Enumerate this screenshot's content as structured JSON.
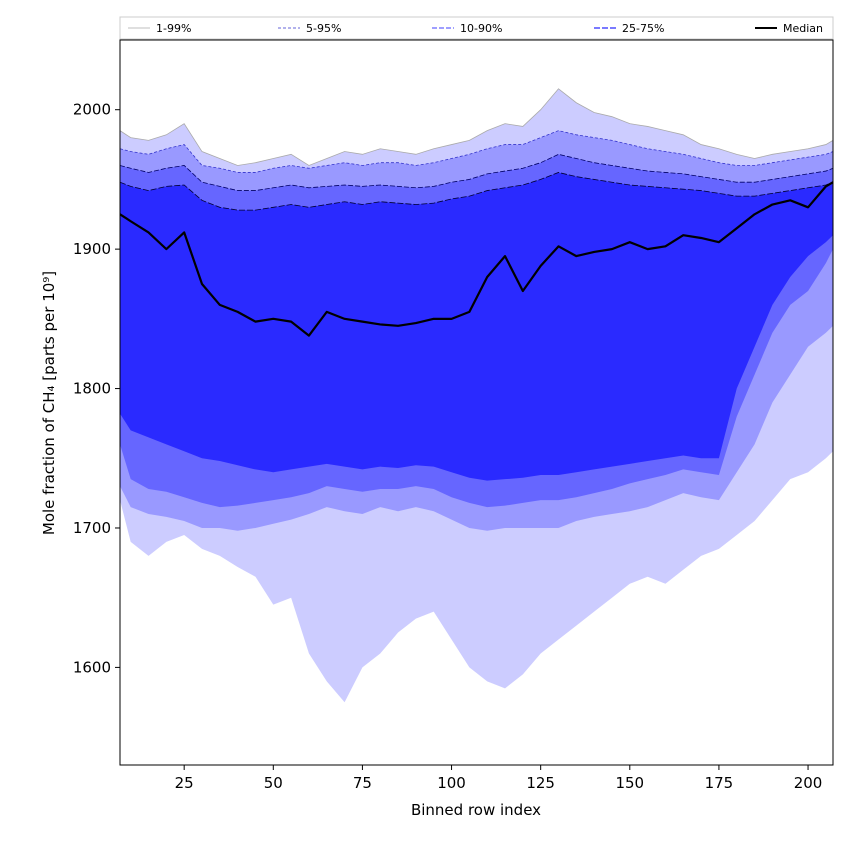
{
  "chart_data": {
    "type": "area",
    "title": "",
    "xlabel": "Binned row index",
    "ylabel": "Mole fraction of CH₄ [parts per 10⁹]",
    "xlim": [
      7,
      207
    ],
    "ylim": [
      1530,
      2050
    ],
    "xticks": [
      25,
      50,
      75,
      100,
      125,
      150,
      175,
      200
    ],
    "yticks": [
      1600,
      1700,
      1800,
      1900,
      2000
    ],
    "grid": false,
    "legend": {
      "placement": "top",
      "entries": [
        "1-99%",
        "5-95%",
        "10-90%",
        "25-75%",
        "Median"
      ]
    },
    "colors": {
      "band_1_99": "#ccccff",
      "band_5_95": "#9999ff",
      "band_10_90": "#6666ff",
      "band_25_75": "#2a2aff",
      "median": "#000000",
      "edge_1_99": "#aaaaaa",
      "edge_5_95": "#3333cc",
      "edge_10_90": "#000066",
      "edge_25_75": "#000033"
    },
    "x": [
      7,
      10,
      15,
      20,
      25,
      30,
      35,
      40,
      45,
      50,
      55,
      60,
      65,
      70,
      75,
      80,
      85,
      90,
      95,
      100,
      105,
      110,
      115,
      120,
      125,
      130,
      135,
      140,
      145,
      150,
      155,
      160,
      165,
      170,
      175,
      180,
      185,
      190,
      195,
      200,
      205,
      207
    ],
    "series": [
      {
        "name": "1-99%",
        "lower": [
          1720,
          1690,
          1680,
          1690,
          1695,
          1685,
          1680,
          1672,
          1665,
          1645,
          1650,
          1610,
          1590,
          1575,
          1600,
          1610,
          1625,
          1635,
          1640,
          1620,
          1600,
          1590,
          1585,
          1595,
          1610,
          1620,
          1630,
          1640,
          1650,
          1660,
          1665,
          1660,
          1670,
          1680,
          1685,
          1695,
          1705,
          1720,
          1735,
          1740,
          1750,
          1755
        ],
        "upper": [
          1985,
          1980,
          1978,
          1982,
          1990,
          1970,
          1965,
          1960,
          1962,
          1965,
          1968,
          1960,
          1965,
          1970,
          1968,
          1972,
          1970,
          1968,
          1972,
          1975,
          1978,
          1985,
          1990,
          1988,
          2000,
          2015,
          2005,
          1998,
          1995,
          1990,
          1988,
          1985,
          1982,
          1975,
          1972,
          1968,
          1965,
          1968,
          1970,
          1972,
          1975,
          1978
        ]
      },
      {
        "name": "5-95%",
        "lower": [
          1730,
          1715,
          1710,
          1708,
          1705,
          1700,
          1700,
          1698,
          1700,
          1703,
          1706,
          1710,
          1715,
          1712,
          1710,
          1715,
          1712,
          1715,
          1712,
          1706,
          1700,
          1698,
          1700,
          1700,
          1700,
          1700,
          1705,
          1708,
          1710,
          1712,
          1715,
          1720,
          1725,
          1722,
          1720,
          1740,
          1760,
          1790,
          1810,
          1830,
          1840,
          1845
        ],
        "upper": [
          1972,
          1970,
          1968,
          1972,
          1975,
          1960,
          1958,
          1955,
          1955,
          1958,
          1960,
          1958,
          1960,
          1962,
          1960,
          1962,
          1962,
          1960,
          1962,
          1965,
          1968,
          1972,
          1975,
          1975,
          1980,
          1985,
          1982,
          1980,
          1978,
          1975,
          1972,
          1970,
          1968,
          1965,
          1962,
          1960,
          1960,
          1962,
          1964,
          1966,
          1968,
          1970
        ]
      },
      {
        "name": "10-90%",
        "lower": [
          1760,
          1735,
          1728,
          1726,
          1722,
          1718,
          1715,
          1716,
          1718,
          1720,
          1722,
          1725,
          1730,
          1728,
          1726,
          1728,
          1728,
          1730,
          1728,
          1722,
          1718,
          1715,
          1716,
          1718,
          1720,
          1720,
          1722,
          1725,
          1728,
          1732,
          1735,
          1738,
          1742,
          1740,
          1738,
          1780,
          1810,
          1840,
          1860,
          1870,
          1890,
          1900
        ],
        "upper": [
          1960,
          1958,
          1955,
          1958,
          1960,
          1948,
          1945,
          1942,
          1942,
          1944,
          1946,
          1944,
          1945,
          1946,
          1945,
          1946,
          1945,
          1944,
          1945,
          1948,
          1950,
          1954,
          1956,
          1958,
          1962,
          1968,
          1965,
          1962,
          1960,
          1958,
          1956,
          1955,
          1954,
          1952,
          1950,
          1948,
          1948,
          1950,
          1952,
          1954,
          1956,
          1958
        ]
      },
      {
        "name": "25-75%",
        "lower": [
          1782,
          1770,
          1765,
          1760,
          1755,
          1750,
          1748,
          1745,
          1742,
          1740,
          1742,
          1744,
          1746,
          1744,
          1742,
          1744,
          1743,
          1745,
          1744,
          1740,
          1736,
          1734,
          1735,
          1736,
          1738,
          1738,
          1740,
          1742,
          1744,
          1746,
          1748,
          1750,
          1752,
          1750,
          1750,
          1800,
          1830,
          1860,
          1880,
          1895,
          1905,
          1910
        ],
        "upper": [
          1948,
          1945,
          1942,
          1945,
          1946,
          1935,
          1930,
          1928,
          1928,
          1930,
          1932,
          1930,
          1932,
          1934,
          1932,
          1934,
          1933,
          1932,
          1933,
          1936,
          1938,
          1942,
          1944,
          1946,
          1950,
          1955,
          1952,
          1950,
          1948,
          1946,
          1945,
          1944,
          1943,
          1942,
          1940,
          1938,
          1938,
          1940,
          1942,
          1944,
          1946,
          1948
        ]
      },
      {
        "name": "Median",
        "values": [
          1925,
          1920,
          1912,
          1900,
          1912,
          1875,
          1860,
          1855,
          1848,
          1850,
          1848,
          1838,
          1855,
          1850,
          1848,
          1846,
          1845,
          1847,
          1850,
          1850,
          1855,
          1880,
          1895,
          1870,
          1888,
          1902,
          1895,
          1898,
          1900,
          1905,
          1900,
          1902,
          1910,
          1908,
          1905,
          1915,
          1925,
          1932,
          1935,
          1930,
          1945,
          1948
        ]
      }
    ]
  }
}
